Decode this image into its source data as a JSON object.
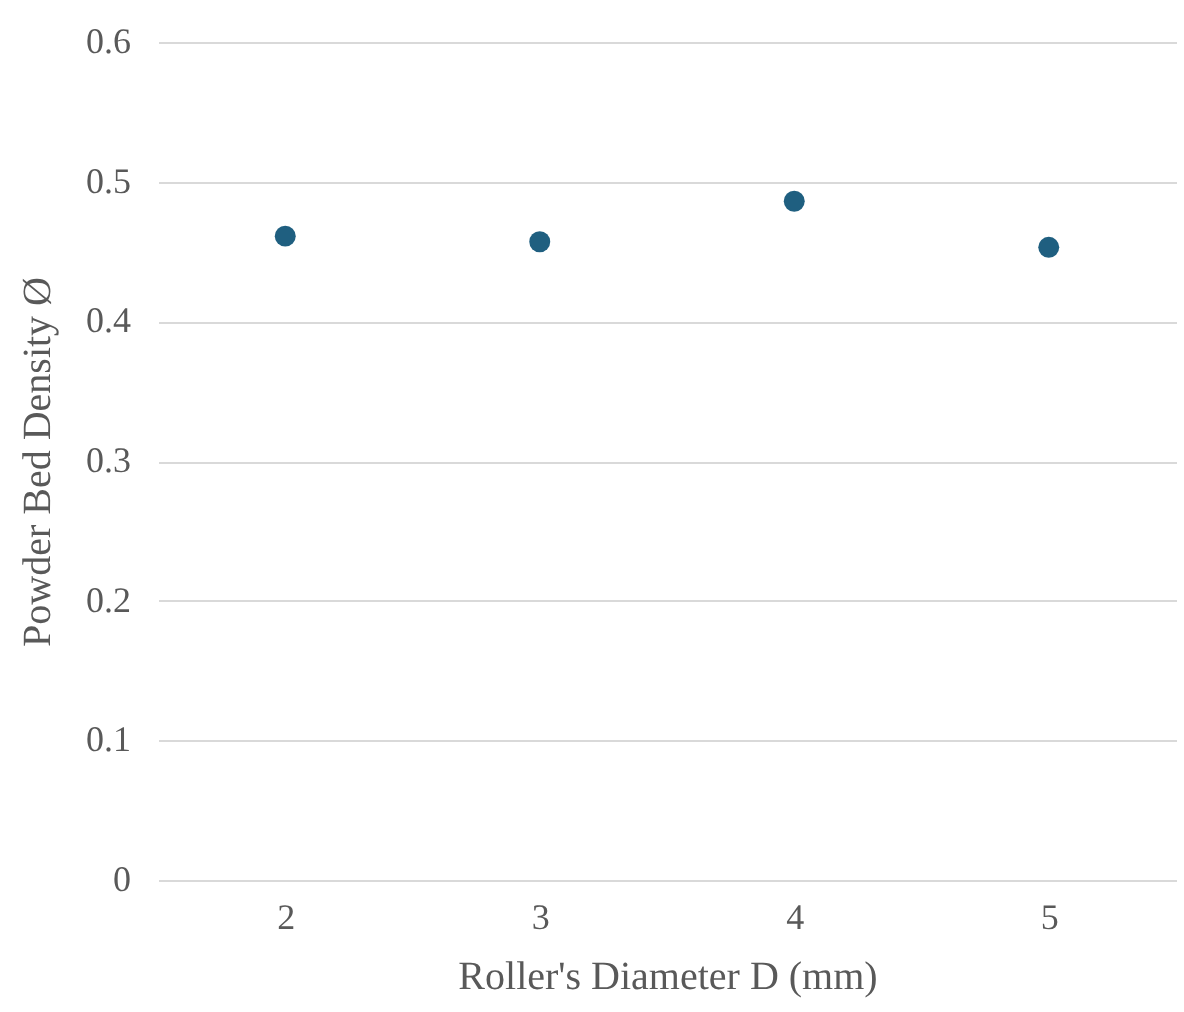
{
  "chart_data": {
    "type": "scatter",
    "xlabel": "Roller's Diameter D (mm)",
    "ylabel": "Powder Bed Density Ø",
    "categories": [
      "2",
      "3",
      "4",
      "5"
    ],
    "series": [
      {
        "color": "#1f5f80",
        "values": [
          0.461,
          0.457,
          0.486,
          0.453
        ]
      }
    ],
    "ylim": [
      0,
      0.6
    ],
    "yticks": [
      0,
      0.1,
      0.2,
      0.3,
      0.4,
      0.5,
      0.6
    ],
    "grid": "y",
    "marker": "circle"
  }
}
